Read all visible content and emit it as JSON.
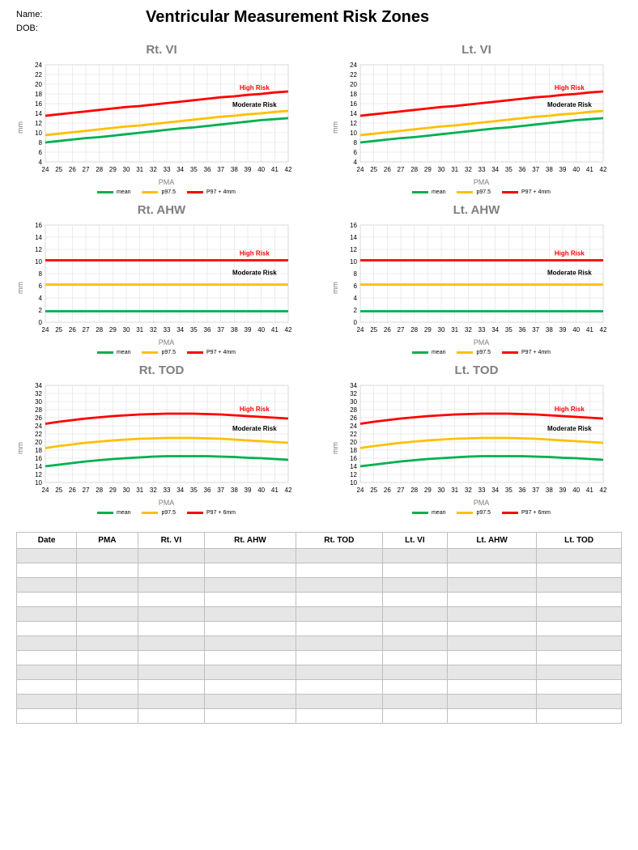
{
  "header": {
    "name_label": "Name:",
    "dob_label": "DOB:",
    "title": "Ventricular Measurement Risk Zones"
  },
  "axis": {
    "y_label": "mm",
    "x_label": "PMA",
    "x_min": 24,
    "x_max": 42,
    "x_ticks": [
      24,
      25,
      26,
      27,
      28,
      29,
      30,
      31,
      32,
      33,
      34,
      35,
      36,
      37,
      38,
      39,
      40,
      41,
      42
    ]
  },
  "colors": {
    "mean": "#00b050",
    "p97": "#ffc000",
    "high": "#ff0000",
    "grid": "#d9d9d9",
    "axis": "#bfbfbf",
    "bg": "#ffffff"
  },
  "legend_labels": {
    "mean": "mean",
    "p97": "p97.5",
    "p97_4": "P97 + 4mm",
    "p97_6": "P97 + 6mm"
  },
  "risk_labels": {
    "high": "High Risk",
    "moderate": "Moderate Risk"
  },
  "charts": [
    {
      "id": "rt-vi",
      "title": "Rt. VI",
      "y_min": 4,
      "y_max": 24,
      "y_step": 2,
      "series_mean": [
        8.0,
        8.3,
        8.6,
        8.9,
        9.1,
        9.4,
        9.7,
        10.0,
        10.3,
        10.6,
        10.9,
        11.1,
        11.4,
        11.7,
        12.0,
        12.3,
        12.6,
        12.8,
        13.0
      ],
      "series_p97": [
        9.5,
        9.8,
        10.1,
        10.4,
        10.7,
        11.0,
        11.3,
        11.5,
        11.8,
        12.1,
        12.4,
        12.7,
        13.0,
        13.3,
        13.5,
        13.8,
        14.0,
        14.3,
        14.5
      ],
      "series_high": [
        13.5,
        13.8,
        14.1,
        14.4,
        14.7,
        15.0,
        15.3,
        15.5,
        15.8,
        16.1,
        16.4,
        16.7,
        17.0,
        17.3,
        17.5,
        17.8,
        18.0,
        18.3,
        18.5
      ],
      "high_legend": "p97_4"
    },
    {
      "id": "lt-vi",
      "title": "Lt. VI",
      "y_min": 4,
      "y_max": 24,
      "y_step": 2,
      "series_mean": [
        8.0,
        8.3,
        8.6,
        8.9,
        9.1,
        9.4,
        9.7,
        10.0,
        10.3,
        10.6,
        10.9,
        11.1,
        11.4,
        11.7,
        12.0,
        12.3,
        12.6,
        12.8,
        13.0
      ],
      "series_p97": [
        9.5,
        9.8,
        10.1,
        10.4,
        10.7,
        11.0,
        11.3,
        11.5,
        11.8,
        12.1,
        12.4,
        12.7,
        13.0,
        13.3,
        13.5,
        13.8,
        14.0,
        14.3,
        14.5
      ],
      "series_high": [
        13.5,
        13.8,
        14.1,
        14.4,
        14.7,
        15.0,
        15.3,
        15.5,
        15.8,
        16.1,
        16.4,
        16.7,
        17.0,
        17.3,
        17.5,
        17.8,
        18.0,
        18.3,
        18.5
      ],
      "high_legend": "p97_4"
    },
    {
      "id": "rt-ahw",
      "title": "Rt. AHW",
      "y_min": 0,
      "y_max": 16,
      "y_step": 2,
      "series_mean": [
        1.8,
        1.8,
        1.8,
        1.8,
        1.8,
        1.8,
        1.8,
        1.8,
        1.8,
        1.8,
        1.8,
        1.8,
        1.8,
        1.8,
        1.8,
        1.8,
        1.8,
        1.8,
        1.8
      ],
      "series_p97": [
        6.2,
        6.2,
        6.2,
        6.2,
        6.2,
        6.2,
        6.2,
        6.2,
        6.2,
        6.2,
        6.2,
        6.2,
        6.2,
        6.2,
        6.2,
        6.2,
        6.2,
        6.2,
        6.2
      ],
      "series_high": [
        10.2,
        10.2,
        10.2,
        10.2,
        10.2,
        10.2,
        10.2,
        10.2,
        10.2,
        10.2,
        10.2,
        10.2,
        10.2,
        10.2,
        10.2,
        10.2,
        10.2,
        10.2,
        10.2
      ],
      "high_legend": "p97_4"
    },
    {
      "id": "lt-ahw",
      "title": "Lt. AHW",
      "y_min": 0,
      "y_max": 16,
      "y_step": 2,
      "series_mean": [
        1.8,
        1.8,
        1.8,
        1.8,
        1.8,
        1.8,
        1.8,
        1.8,
        1.8,
        1.8,
        1.8,
        1.8,
        1.8,
        1.8,
        1.8,
        1.8,
        1.8,
        1.8,
        1.8
      ],
      "series_p97": [
        6.2,
        6.2,
        6.2,
        6.2,
        6.2,
        6.2,
        6.2,
        6.2,
        6.2,
        6.2,
        6.2,
        6.2,
        6.2,
        6.2,
        6.2,
        6.2,
        6.2,
        6.2,
        6.2
      ],
      "series_high": [
        10.2,
        10.2,
        10.2,
        10.2,
        10.2,
        10.2,
        10.2,
        10.2,
        10.2,
        10.2,
        10.2,
        10.2,
        10.2,
        10.2,
        10.2,
        10.2,
        10.2,
        10.2,
        10.2
      ],
      "high_legend": "p97_4"
    },
    {
      "id": "rt-tod",
      "title": "Rt. TOD",
      "y_min": 10,
      "y_max": 34,
      "y_step": 2,
      "series_mean": [
        14.0,
        14.4,
        14.8,
        15.2,
        15.5,
        15.8,
        16.0,
        16.2,
        16.4,
        16.5,
        16.5,
        16.5,
        16.5,
        16.4,
        16.3,
        16.1,
        16.0,
        15.8,
        15.6
      ],
      "series_p97": [
        18.5,
        19.0,
        19.4,
        19.8,
        20.1,
        20.4,
        20.6,
        20.8,
        20.9,
        21.0,
        21.0,
        21.0,
        20.9,
        20.8,
        20.6,
        20.4,
        20.2,
        20.0,
        19.8
      ],
      "series_high": [
        24.5,
        25.0,
        25.4,
        25.8,
        26.1,
        26.4,
        26.6,
        26.8,
        26.9,
        27.0,
        27.0,
        27.0,
        26.9,
        26.8,
        26.6,
        26.4,
        26.2,
        26.0,
        25.8
      ],
      "high_legend": "p97_6"
    },
    {
      "id": "lt-tod",
      "title": "Lt. TOD",
      "y_min": 10,
      "y_max": 34,
      "y_step": 2,
      "series_mean": [
        14.0,
        14.4,
        14.8,
        15.2,
        15.5,
        15.8,
        16.0,
        16.2,
        16.4,
        16.5,
        16.5,
        16.5,
        16.5,
        16.4,
        16.3,
        16.1,
        16.0,
        15.8,
        15.6
      ],
      "series_p97": [
        18.5,
        19.0,
        19.4,
        19.8,
        20.1,
        20.4,
        20.6,
        20.8,
        20.9,
        21.0,
        21.0,
        21.0,
        20.9,
        20.8,
        20.6,
        20.4,
        20.2,
        20.0,
        19.8
      ],
      "series_high": [
        24.5,
        25.0,
        25.4,
        25.8,
        26.1,
        26.4,
        26.6,
        26.8,
        26.9,
        27.0,
        27.0,
        27.0,
        26.9,
        26.8,
        26.6,
        26.4,
        26.2,
        26.0,
        25.8
      ],
      "high_legend": "p97_6"
    }
  ],
  "table": {
    "columns": [
      "Date",
      "PMA",
      "Rt. VI",
      "Rt. AHW",
      "Rt. TOD",
      "Lt. VI",
      "Lt. AHW",
      "Lt. TOD"
    ],
    "row_count": 12
  }
}
